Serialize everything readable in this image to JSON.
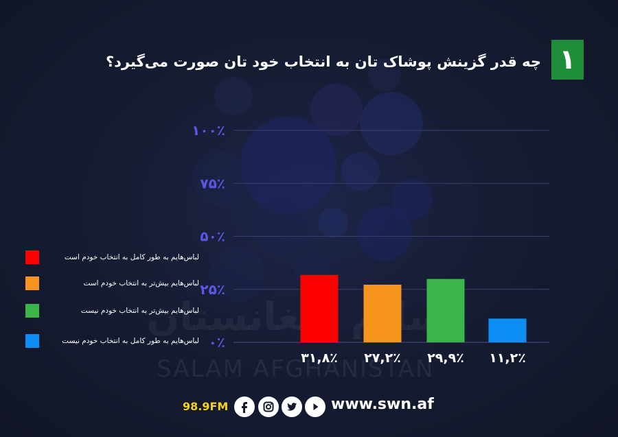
{
  "header": {
    "number": "۱",
    "title": "چه قدر گزینش پوشاک تان به انتخاب خود تان صورت می‌گیرد؟"
  },
  "chart_data": {
    "type": "bar",
    "title": "چه قدر گزینش پوشاک تان به انتخاب خود تان صورت می‌گیرد؟",
    "categories": [
      "لباس‌هایم به طور کامل به انتخاب خودم است",
      "لباس‌هایم بیش‌تر به انتخاب خودم است",
      "لباس‌هایم بیش‌تر به انتخاب خودم نیست",
      "لباس‌هایم به طور کامل به انتخاب خودم نیست"
    ],
    "values": [
      31.8,
      27.2,
      29.9,
      11.2
    ],
    "value_labels": [
      "۳۱,۸٪",
      "۲۷,۲٪",
      "۲۹,۹٪",
      "۱۱,۲٪"
    ],
    "colors": [
      "#ff0000",
      "#f7941d",
      "#39b54a",
      "#0b8ff5"
    ],
    "yticks": [
      0,
      25,
      50,
      75,
      100
    ],
    "ytick_labels": [
      "۰٪",
      "۲۵٪",
      "۵۰٪",
      "۷۵٪",
      "۱۰۰٪"
    ],
    "ylim": [
      0,
      100
    ],
    "grid": true,
    "legend_position": "left",
    "tick_label_color": "#5b57e6",
    "grid_color": "#3a3f6e"
  },
  "legend": [
    {
      "label": "لباس‌هایم به طور کامل به انتخاب خودم است",
      "color": "#ff0000"
    },
    {
      "label": "لباس‌هایم بیش‌تر به انتخاب خودم است",
      "color": "#f7941d"
    },
    {
      "label": "لباس‌هایم بیش‌تر به انتخاب خودم نیست",
      "color": "#39b54a"
    },
    {
      "label": "لباس‌هایم به طور کامل به انتخاب خودم نیست",
      "color": "#0b8ff5"
    }
  ],
  "watermark": {
    "latin": "SALAM AFGHANISTAN",
    "native": "سلام افغانستان"
  },
  "footer": {
    "fm": "98.9FM",
    "website": "www.swn.af",
    "icons": [
      "facebook-icon",
      "instagram-icon",
      "twitter-icon",
      "youtube-icon"
    ],
    "fm_color": "#f3d21f"
  }
}
